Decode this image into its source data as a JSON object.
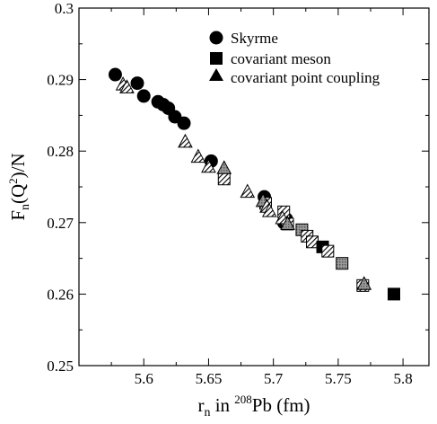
{
  "chart_data": {
    "type": "scatter",
    "xlim": [
      5.55,
      5.82
    ],
    "ylim": [
      0.25,
      0.3
    ],
    "xticks": [
      "5.6",
      "5.65",
      "5.7",
      "5.75",
      "5.8"
    ],
    "yticks": [
      "0.25",
      "0.26",
      "0.27",
      "0.28",
      "0.29",
      "0.3"
    ],
    "xticks_values": [
      5.6,
      5.65,
      5.7,
      5.75,
      5.8
    ],
    "yticks_values": [
      0.25,
      0.26,
      0.27,
      0.28,
      0.29,
      0.3
    ],
    "xlabel": {
      "main": "r",
      "sub": "n",
      "mid": " in ",
      "sup": "208",
      "tail": "Pb (fm)"
    },
    "ylabel": {
      "main": "F",
      "sub": "n",
      "open": "(Q",
      "sup": "2",
      "tail": ")/N"
    },
    "legend_position": "top-right",
    "grid": false,
    "series": [
      {
        "name": "Skyrme",
        "marker": "circle",
        "color": "#000000",
        "points": [
          {
            "x": 5.578,
            "y": 0.2907,
            "fill": "solid"
          },
          {
            "x": 5.595,
            "y": 0.2895,
            "fill": "solid"
          },
          {
            "x": 5.6,
            "y": 0.2877,
            "fill": "solid"
          },
          {
            "x": 5.611,
            "y": 0.2869,
            "fill": "solid"
          },
          {
            "x": 5.615,
            "y": 0.2865,
            "fill": "solid"
          },
          {
            "x": 5.619,
            "y": 0.286,
            "fill": "solid"
          },
          {
            "x": 5.624,
            "y": 0.2848,
            "fill": "solid"
          },
          {
            "x": 5.631,
            "y": 0.2839,
            "fill": "solid"
          },
          {
            "x": 5.652,
            "y": 0.2786,
            "fill": "solid"
          },
          {
            "x": 5.693,
            "y": 0.2736,
            "fill": "solid"
          },
          {
            "x": 5.71,
            "y": 0.2705,
            "fill": "solid"
          },
          {
            "x": 5.708,
            "y": 0.27,
            "fill": "solid"
          }
        ]
      },
      {
        "name": "covariant meson",
        "marker": "square",
        "color": "#000000",
        "points": [
          {
            "x": 5.662,
            "y": 0.2761,
            "fill": "hatch"
          },
          {
            "x": 5.694,
            "y": 0.2727,
            "fill": "hatch"
          },
          {
            "x": 5.708,
            "y": 0.2715,
            "fill": "hatch"
          },
          {
            "x": 5.711,
            "y": 0.2698,
            "fill": "hatch"
          },
          {
            "x": 5.722,
            "y": 0.269,
            "fill": "gray"
          },
          {
            "x": 5.726,
            "y": 0.2681,
            "fill": "hatch"
          },
          {
            "x": 5.73,
            "y": 0.2673,
            "fill": "hatch"
          },
          {
            "x": 5.738,
            "y": 0.2666,
            "fill": "solid"
          },
          {
            "x": 5.742,
            "y": 0.266,
            "fill": "hatch"
          },
          {
            "x": 5.753,
            "y": 0.2643,
            "fill": "gray"
          },
          {
            "x": 5.769,
            "y": 0.2612,
            "fill": "hatch"
          },
          {
            "x": 5.793,
            "y": 0.26,
            "fill": "solid"
          }
        ]
      },
      {
        "name": "covariant point coupling",
        "marker": "triangle",
        "color": "#000000",
        "points": [
          {
            "x": 5.584,
            "y": 0.2893,
            "fill": "hatch"
          },
          {
            "x": 5.587,
            "y": 0.2889,
            "fill": "hatch"
          },
          {
            "x": 5.632,
            "y": 0.2813,
            "fill": "hatch"
          },
          {
            "x": 5.642,
            "y": 0.2792,
            "fill": "hatch"
          },
          {
            "x": 5.65,
            "y": 0.2778,
            "fill": "hatch"
          },
          {
            "x": 5.662,
            "y": 0.2776,
            "fill": "gray"
          },
          {
            "x": 5.68,
            "y": 0.2743,
            "fill": "hatch"
          },
          {
            "x": 5.692,
            "y": 0.273,
            "fill": "gray"
          },
          {
            "x": 5.695,
            "y": 0.2722,
            "fill": "hatch"
          },
          {
            "x": 5.697,
            "y": 0.2716,
            "fill": "hatch"
          },
          {
            "x": 5.707,
            "y": 0.2706,
            "fill": "hatch"
          },
          {
            "x": 5.711,
            "y": 0.2698,
            "fill": "gray"
          },
          {
            "x": 5.77,
            "y": 0.2614,
            "fill": "gray"
          }
        ]
      }
    ]
  }
}
